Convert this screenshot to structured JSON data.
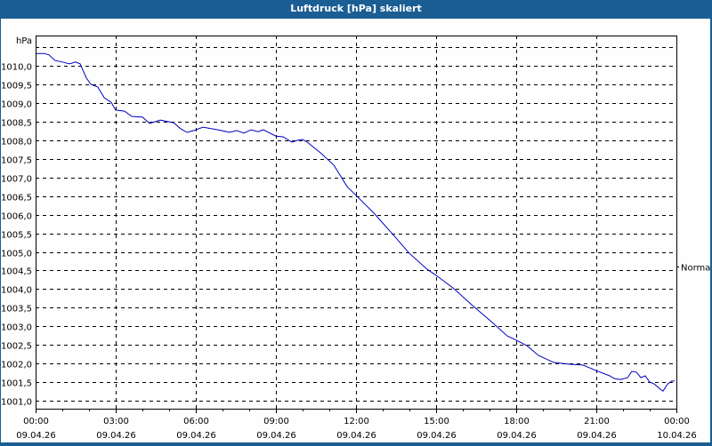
{
  "window": {
    "title": "Luftdruck [hPa] skaliert"
  },
  "chart_data": {
    "type": "line",
    "title": "Luftdruck [hPa] skaliert",
    "xlabel": "",
    "ylabel": "hPa",
    "ylim": [
      1000.75,
      1010.65
    ],
    "xlim_hours": [
      0,
      24
    ],
    "grid": true,
    "grid_style": "dashed",
    "line_color": "#0000c0",
    "reference_label": {
      "text": "Normal",
      "value": 1004.6
    },
    "y_ticks": [
      {
        "value": 1010.5,
        "label": ""
      },
      {
        "value": 1010.0,
        "label": "1010,0"
      },
      {
        "value": 1009.5,
        "label": "1009,5"
      },
      {
        "value": 1009.0,
        "label": "1009,0"
      },
      {
        "value": 1008.5,
        "label": "1008,5"
      },
      {
        "value": 1008.0,
        "label": "1008,0"
      },
      {
        "value": 1007.5,
        "label": "1007,5"
      },
      {
        "value": 1007.0,
        "label": "1007,0"
      },
      {
        "value": 1006.5,
        "label": "1006,5"
      },
      {
        "value": 1006.0,
        "label": "1006,0"
      },
      {
        "value": 1005.5,
        "label": "1005,5"
      },
      {
        "value": 1005.0,
        "label": "1005,0"
      },
      {
        "value": 1004.5,
        "label": "1004,5"
      },
      {
        "value": 1004.0,
        "label": "1004,0"
      },
      {
        "value": 1003.5,
        "label": "1003,5"
      },
      {
        "value": 1003.0,
        "label": "1003,0"
      },
      {
        "value": 1002.5,
        "label": "1002,5"
      },
      {
        "value": 1002.0,
        "label": "1002,0"
      },
      {
        "value": 1001.5,
        "label": "1001,5"
      },
      {
        "value": 1001.0,
        "label": "1001,0"
      }
    ],
    "x_ticks": [
      {
        "hours": 0,
        "time": "00:00",
        "date": "09.04.26"
      },
      {
        "hours": 3,
        "time": "03:00",
        "date": "09.04.26"
      },
      {
        "hours": 6,
        "time": "06:00",
        "date": "09.04.26"
      },
      {
        "hours": 9,
        "time": "09:00",
        "date": "09.04.26"
      },
      {
        "hours": 12,
        "time": "12:00",
        "date": "09.04.26"
      },
      {
        "hours": 15,
        "time": "15:00",
        "date": "09.04.26"
      },
      {
        "hours": 18,
        "time": "18:00",
        "date": "09.04.26"
      },
      {
        "hours": 21,
        "time": "21:00",
        "date": "09.04.26"
      },
      {
        "hours": 24,
        "time": "00:00",
        "date": "10.04.26"
      }
    ],
    "series": [
      {
        "name": "Luftdruck",
        "x_hours": [
          0.0,
          0.33,
          0.5,
          0.73,
          1.0,
          1.27,
          1.5,
          1.67,
          1.9,
          2.07,
          2.33,
          2.57,
          2.83,
          3.0,
          3.33,
          3.6,
          4.0,
          4.27,
          4.67,
          5.17,
          5.43,
          5.67,
          5.93,
          6.27,
          6.83,
          7.27,
          7.53,
          7.8,
          8.07,
          8.33,
          8.53,
          9.0,
          9.27,
          9.6,
          9.83,
          10.0,
          10.17,
          10.67,
          11.17,
          11.67,
          12.0,
          12.67,
          13.33,
          14.0,
          14.67,
          15.0,
          15.67,
          16.33,
          17.0,
          17.67,
          18.0,
          18.4,
          18.83,
          19.4,
          20.0,
          20.5,
          20.83,
          21.0,
          21.5,
          21.67,
          21.9,
          22.17,
          22.33,
          22.5,
          22.67,
          22.83,
          23.0,
          23.17,
          23.4,
          23.5,
          23.67,
          23.83,
          23.93
        ],
        "values": [
          1010.33,
          1010.33,
          1010.29,
          1010.14,
          1010.1,
          1010.05,
          1010.1,
          1010.05,
          1009.67,
          1009.5,
          1009.43,
          1009.14,
          1009.02,
          1008.81,
          1008.78,
          1008.64,
          1008.62,
          1008.45,
          1008.54,
          1008.47,
          1008.31,
          1008.21,
          1008.26,
          1008.35,
          1008.28,
          1008.21,
          1008.26,
          1008.19,
          1008.28,
          1008.23,
          1008.28,
          1008.11,
          1008.09,
          1007.95,
          1008.0,
          1008.02,
          1007.95,
          1007.66,
          1007.33,
          1006.75,
          1006.52,
          1006.04,
          1005.51,
          1004.96,
          1004.53,
          1004.37,
          1004.01,
          1003.58,
          1003.17,
          1002.74,
          1002.63,
          1002.48,
          1002.22,
          1002.03,
          1001.98,
          1001.96,
          1001.86,
          1001.81,
          1001.67,
          1001.6,
          1001.57,
          1001.62,
          1001.79,
          1001.77,
          1001.62,
          1001.67,
          1001.5,
          1001.45,
          1001.31,
          1001.26,
          1001.45,
          1001.53,
          1001.53
        ]
      }
    ]
  }
}
